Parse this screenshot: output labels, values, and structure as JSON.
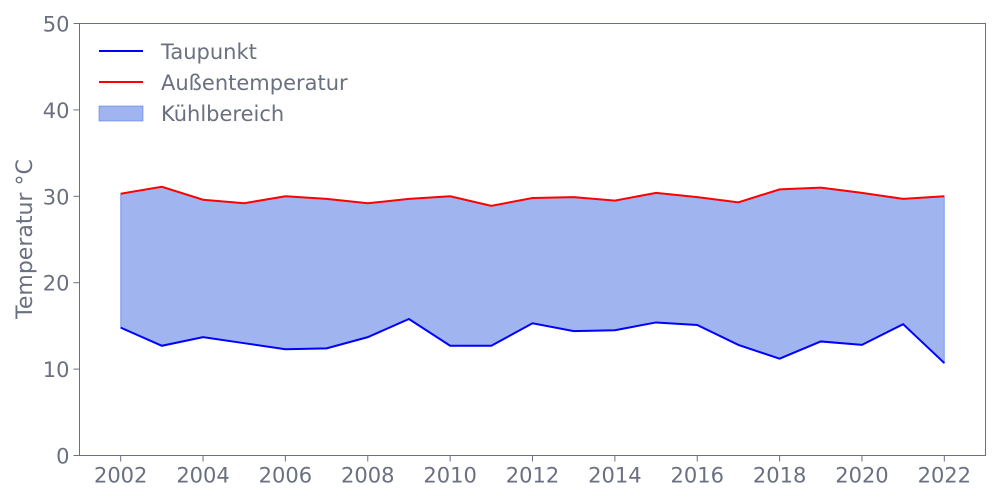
{
  "chart_data": {
    "type": "line",
    "title": "",
    "xlabel": "",
    "ylabel": "Temperatur °C",
    "xlim": [
      2001,
      2023
    ],
    "ylim": [
      0,
      50
    ],
    "xticks": [
      "2002",
      "2004",
      "2006",
      "2008",
      "2010",
      "2012",
      "2014",
      "2016",
      "2018",
      "2020",
      "2022"
    ],
    "yticks": [
      "0",
      "10",
      "20",
      "30",
      "40",
      "50"
    ],
    "grid": false,
    "legend_position": "top-left",
    "x": [
      2002,
      2003,
      2004,
      2005,
      2006,
      2007,
      2008,
      2009,
      2010,
      2011,
      2012,
      2013,
      2014,
      2015,
      2016,
      2017,
      2018,
      2019,
      2020,
      2021,
      2022
    ],
    "series": [
      {
        "name": "Taupunkt",
        "color": "#0000ff",
        "values": [
          14.8,
          12.7,
          13.7,
          13.0,
          12.3,
          12.4,
          13.7,
          15.8,
          12.7,
          12.7,
          15.3,
          14.4,
          14.5,
          15.4,
          15.1,
          12.8,
          11.2,
          13.2,
          12.8,
          15.2,
          10.7
        ]
      },
      {
        "name": "Außentemperatur",
        "color": "#ff0000",
        "values": [
          30.3,
          31.1,
          29.6,
          29.2,
          30.0,
          29.7,
          29.2,
          29.7,
          30.0,
          28.9,
          29.8,
          29.9,
          29.5,
          30.4,
          29.9,
          29.3,
          30.8,
          31.0,
          30.4,
          29.7,
          30.0
        ]
      }
    ],
    "fill": {
      "name": "Kühlbereich",
      "color": "#4169e1",
      "opacity": 0.5,
      "between": [
        "Taupunkt",
        "Außentemperatur"
      ]
    }
  }
}
